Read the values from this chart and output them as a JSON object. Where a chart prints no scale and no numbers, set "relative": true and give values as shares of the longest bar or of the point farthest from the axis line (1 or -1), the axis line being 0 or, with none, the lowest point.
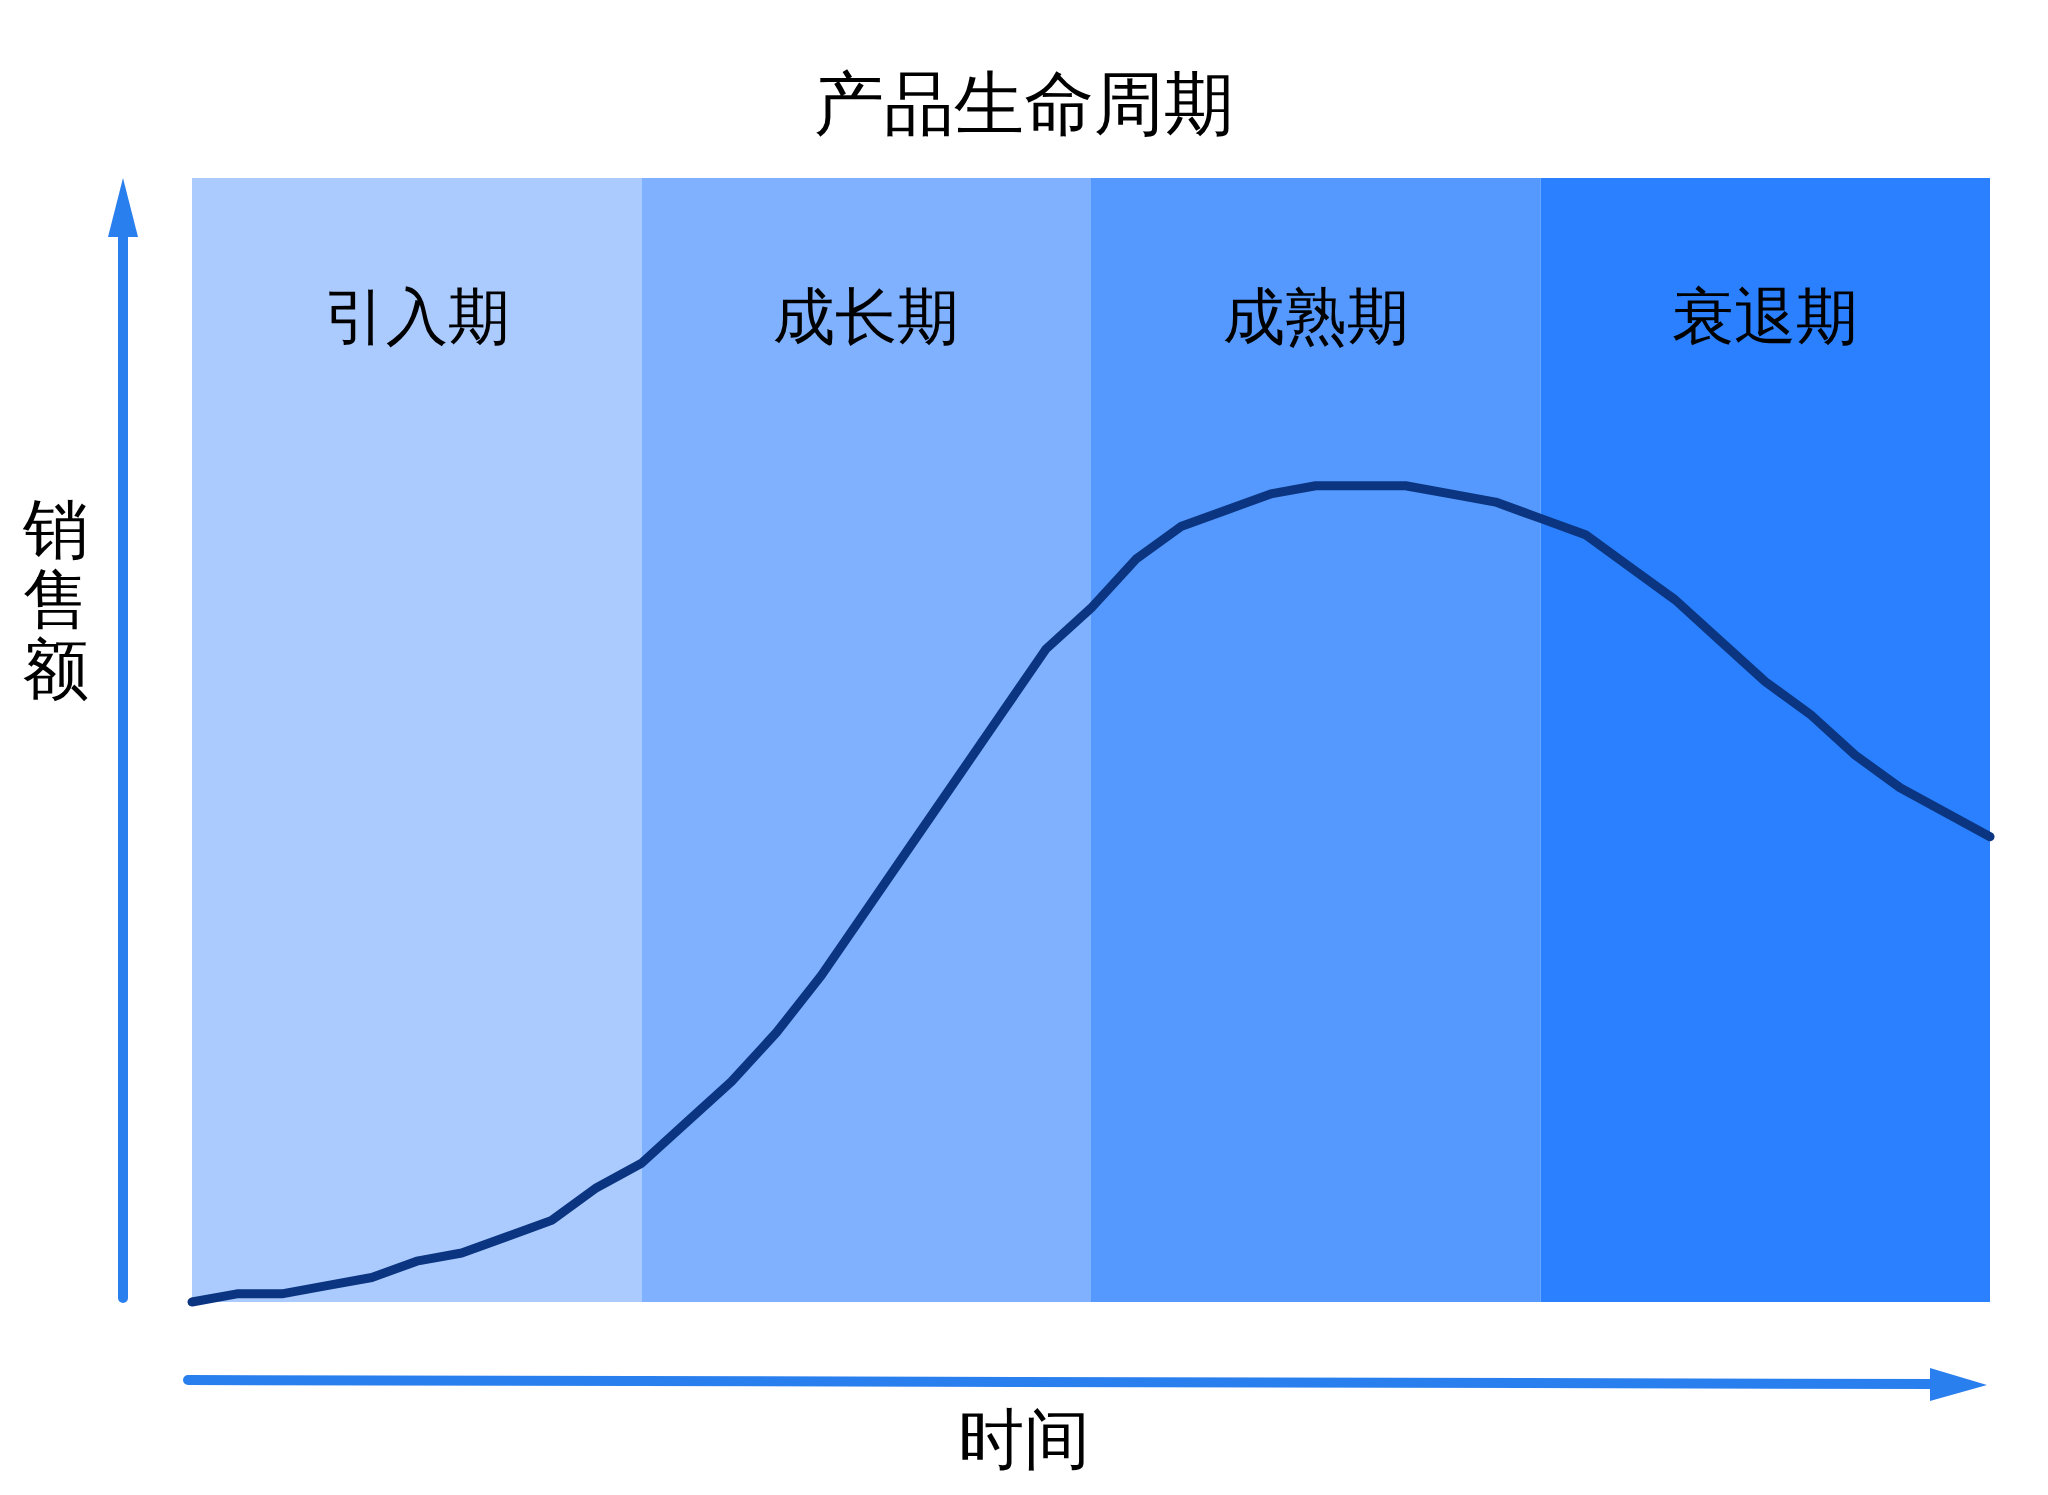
{
  "chart_data": {
    "type": "line",
    "title": "产品生命周期",
    "xlabel": "时间",
    "ylabel": "销售额",
    "relative": true,
    "categories": [
      null,
      null,
      null,
      null,
      null,
      null,
      null,
      null,
      null,
      null,
      null,
      null,
      null,
      null,
      null,
      null,
      null,
      null,
      null,
      null,
      null,
      null,
      null,
      null,
      null,
      null,
      null,
      null,
      null,
      null,
      null,
      null,
      null,
      null,
      null,
      null,
      null,
      null,
      null,
      null,
      null
    ],
    "series": [
      {
        "color": "#0b3580",
        "values": [
          0,
          0.01,
          0.01,
          0.02,
          0.03,
          0.05,
          0.06,
          0.08,
          0.1,
          0.14,
          0.17,
          0.22,
          0.27,
          0.33,
          0.4,
          0.48,
          0.56,
          0.64,
          0.72,
          0.8,
          0.85,
          0.91,
          0.95,
          0.97,
          0.99,
          1,
          1,
          1,
          0.99,
          0.98,
          0.96,
          0.94,
          0.9,
          0.86,
          0.81,
          0.76,
          0.72,
          0.67,
          0.63,
          0.6,
          0.57
        ]
      }
    ],
    "annotations": [
      "引入期",
      "成长期",
      "成熟期",
      "衰退期"
    ],
    "line_style": "solid"
  }
}
